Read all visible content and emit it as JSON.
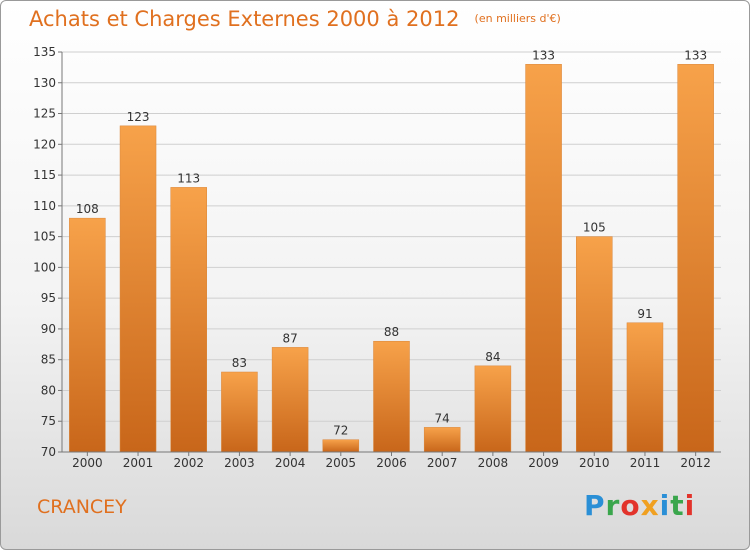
{
  "title": "Achats et Charges Externes 2000 à 2012",
  "unit": "(en milliers d'€)",
  "commune": "CRANCEY",
  "logo": {
    "text": "Proxiti",
    "letters": [
      {
        "char": "P",
        "color": "#2a8fd6"
      },
      {
        "char": "r",
        "color": "#3aa64c"
      },
      {
        "char": "o",
        "color": "#e2332b"
      },
      {
        "char": "x",
        "color": "#f0a020"
      },
      {
        "char": "i",
        "color": "#2a8fd6"
      },
      {
        "char": "t",
        "color": "#3aa64c"
      },
      {
        "char": "i",
        "color": "#e2332b"
      }
    ]
  },
  "colors": {
    "accent": "#e0701f",
    "bar_top": "#f7a24a",
    "bar_bottom": "#c8661a",
    "grid": "#cfcfcf"
  },
  "chart_data": {
    "type": "bar",
    "title": "Achats et Charges Externes 2000 à 2012",
    "subtitle": "(en milliers d'€)",
    "categories": [
      "2000",
      "2001",
      "2002",
      "2003",
      "2004",
      "2005",
      "2006",
      "2007",
      "2008",
      "2009",
      "2010",
      "2011",
      "2012"
    ],
    "values": [
      108,
      123,
      113,
      83,
      87,
      72,
      88,
      74,
      84,
      133,
      105,
      91,
      133
    ],
    "ylim": [
      70,
      135
    ],
    "yticks": [
      70,
      75,
      80,
      85,
      90,
      95,
      100,
      105,
      110,
      115,
      120,
      125,
      130,
      135
    ],
    "grid": true,
    "data_labels": true
  }
}
